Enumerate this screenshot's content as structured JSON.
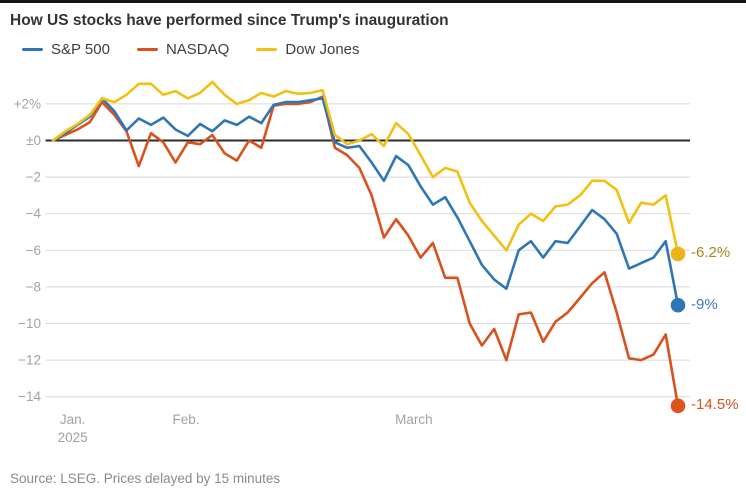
{
  "header": {
    "title": "How US stocks have performed since Trump's inauguration"
  },
  "footer": {
    "source": "Source: LSEG. Prices delayed by 15 minutes"
  },
  "chart_data": {
    "type": "line",
    "title": "How US stocks have performed since Trump's inauguration",
    "grid": true,
    "legend_position": "top-left",
    "y_axis": {
      "unit": "%",
      "range": [
        -15.6,
        3.6
      ],
      "ticks": [
        {
          "label": "+2%",
          "value": 2
        },
        {
          "label": "±0",
          "value": 0
        },
        {
          "label": "−2",
          "value": -2
        },
        {
          "label": "−4",
          "value": -4
        },
        {
          "label": "−6",
          "value": -6
        },
        {
          "label": "−8",
          "value": -8
        },
        {
          "label": "−10",
          "value": -10
        },
        {
          "label": "−12",
          "value": -12
        },
        {
          "label": "−14",
          "value": -14
        }
      ]
    },
    "x_axis": {
      "ticks": [
        {
          "label": "Jan.",
          "sublabel": "2025",
          "index": 1.6
        },
        {
          "label": "Feb.",
          "sublabel": "",
          "index": 10.85
        },
        {
          "label": "March",
          "sublabel": "",
          "index": 29.45
        }
      ]
    },
    "series": [
      {
        "name": "S&P 500",
        "color": "#2e77b4",
        "dot_color": "#2e77b4",
        "label_color": "#3f7cb4",
        "end_label": "-9%",
        "end_value": -9.0,
        "values": [
          0,
          0.4,
          0.85,
          1.3,
          2.3,
          1.6,
          0.55,
          1.2,
          0.85,
          1.25,
          0.6,
          0.25,
          0.9,
          0.5,
          1.1,
          0.85,
          1.3,
          0.95,
          1.95,
          2.1,
          2.1,
          2.2,
          2.3,
          -0.1,
          -0.4,
          -0.3,
          -1.2,
          -2.2,
          -0.85,
          -1.35,
          -2.5,
          -3.5,
          -3.1,
          -4.2,
          -5.5,
          -6.8,
          -7.6,
          -8.1,
          -6.0,
          -5.5,
          -6.4,
          -5.5,
          -5.6,
          -4.7,
          -3.8,
          -4.3,
          -5.1,
          -7.0,
          -6.7,
          -6.4,
          -5.5,
          -9.0
        ]
      },
      {
        "name": "NASDAQ",
        "color": "#d9521d",
        "dot_color": "#e0521b",
        "label_color": "#d9521d",
        "end_label": "-14.5%",
        "end_value": -14.5,
        "values": [
          0,
          0.3,
          0.6,
          1.0,
          2.1,
          1.4,
          0.5,
          -1.4,
          0.4,
          -0.1,
          -1.2,
          -0.1,
          -0.2,
          0.3,
          -0.7,
          -1.1,
          0.0,
          -0.4,
          1.9,
          2.0,
          2.0,
          2.1,
          2.4,
          -0.4,
          -0.8,
          -1.5,
          -3.0,
          -5.3,
          -4.3,
          -5.2,
          -6.4,
          -5.6,
          -7.5,
          -7.5,
          -10.0,
          -11.2,
          -10.3,
          -12.0,
          -9.5,
          -9.4,
          -11.0,
          -9.9,
          -9.4,
          -8.6,
          -7.8,
          -7.2,
          -9.4,
          -11.9,
          -12.0,
          -11.7,
          -10.6,
          -14.5
        ]
      },
      {
        "name": "Dow Jones",
        "color": "#f1c013",
        "dot_color": "#edb41a",
        "label_color": "#a5861c",
        "end_label": "-6.2%",
        "end_value": -6.2,
        "values": [
          0,
          0.5,
          0.9,
          1.4,
          2.3,
          2.1,
          2.5,
          3.1,
          3.1,
          2.5,
          2.7,
          2.3,
          2.6,
          3.2,
          2.5,
          2.0,
          2.2,
          2.6,
          2.4,
          2.7,
          2.55,
          2.6,
          2.75,
          0.3,
          -0.2,
          0.0,
          0.35,
          -0.3,
          0.95,
          0.35,
          -0.8,
          -2.0,
          -1.5,
          -1.7,
          -3.4,
          -4.4,
          -5.2,
          -6.0,
          -4.6,
          -4.0,
          -4.4,
          -3.6,
          -3.5,
          -3.0,
          -2.2,
          -2.2,
          -2.7,
          -4.5,
          -3.4,
          -3.5,
          -3.0,
          -6.2
        ]
      }
    ]
  }
}
